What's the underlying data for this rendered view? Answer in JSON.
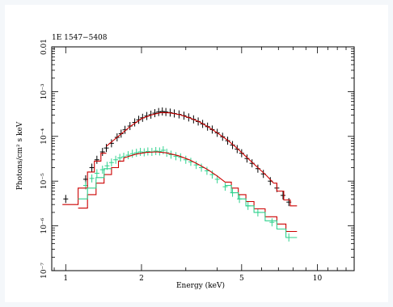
{
  "chart_data": {
    "type": "scatter",
    "title": "1E 1547−5408",
    "xlabel": "Energy (keV)",
    "ylabel": "Photons/cm² s keV",
    "xscale": "log",
    "yscale": "log",
    "xlim": [
      0.88,
      14
    ],
    "ylim": [
      1e-07,
      0.01
    ],
    "grid": false,
    "colors": {
      "obs1_data": "#000000",
      "obs1_model": "#cc0000",
      "obs2_data": "#2fd28e",
      "obs2_model": "#cc0000"
    },
    "xticks": [
      {
        "value": 1,
        "label": "1"
      },
      {
        "value": 2,
        "label": "2"
      },
      {
        "value": 5,
        "label": "5"
      },
      {
        "value": 10,
        "label": "10"
      }
    ],
    "yticks": [
      {
        "value": 0.01,
        "label": "0.01"
      },
      {
        "value": 0.001,
        "label": "10⁻³"
      },
      {
        "value": 0.0001,
        "label": "10⁻⁴"
      },
      {
        "value": 1e-05,
        "label": "10⁻⁵"
      },
      {
        "value": 1e-06,
        "label": "10⁻⁶"
      },
      {
        "value": 1e-07,
        "label": "10⁻⁷"
      }
    ],
    "series": [
      {
        "kind": "points",
        "color": "#000000",
        "points": [
          [
            1.0,
            4e-06
          ],
          [
            1.2,
            1.1e-05
          ],
          [
            1.27,
            2e-05
          ],
          [
            1.33,
            3e-05
          ],
          [
            1.4,
            4.5e-05
          ],
          [
            1.45,
            5.5e-05
          ],
          [
            1.52,
            7e-05
          ],
          [
            1.6,
            9.5e-05
          ],
          [
            1.66,
            0.000115
          ],
          [
            1.72,
            0.00014
          ],
          [
            1.8,
            0.00017
          ],
          [
            1.88,
            0.000205
          ],
          [
            1.95,
            0.000235
          ],
          [
            2.02,
            0.00026
          ],
          [
            2.1,
            0.000285
          ],
          [
            2.18,
            0.000305
          ],
          [
            2.26,
            0.00033
          ],
          [
            2.34,
            0.00035
          ],
          [
            2.42,
            0.00036
          ],
          [
            2.5,
            0.00035
          ],
          [
            2.6,
            0.00034
          ],
          [
            2.7,
            0.000325
          ],
          [
            2.82,
            0.00031
          ],
          [
            2.95,
            0.00029
          ],
          [
            3.08,
            0.000265
          ],
          [
            3.22,
            0.00024
          ],
          [
            3.36,
            0.000215
          ],
          [
            3.5,
            0.00019
          ],
          [
            3.66,
            0.000165
          ],
          [
            3.82,
            0.000142
          ],
          [
            4.0,
            0.00012
          ],
          [
            4.2,
            9.8e-05
          ],
          [
            4.4,
            8e-05
          ],
          [
            4.6,
            6.4e-05
          ],
          [
            4.8,
            5.2e-05
          ],
          [
            5.0,
            4.2e-05
          ],
          [
            5.25,
            3.2e-05
          ],
          [
            5.5,
            2.5e-05
          ],
          [
            5.8,
            1.9e-05
          ],
          [
            6.1,
            1.45e-05
          ],
          [
            6.5,
            1e-05
          ],
          [
            6.9,
            7e-06
          ],
          [
            7.3,
            4.8e-06
          ],
          [
            7.7,
            3.4e-06
          ]
        ]
      },
      {
        "kind": "points",
        "color": "#2fd28e",
        "points": [
          [
            1.2,
            8e-06
          ],
          [
            1.27,
            1.15e-05
          ],
          [
            1.33,
            1.5e-05
          ],
          [
            1.4,
            1.8e-05
          ],
          [
            1.46,
            2.2e-05
          ],
          [
            1.52,
            2.6e-05
          ],
          [
            1.58,
            3e-05
          ],
          [
            1.64,
            3.3e-05
          ],
          [
            1.7,
            3.5e-05
          ],
          [
            1.77,
            3.8e-05
          ],
          [
            1.84,
            4.1e-05
          ],
          [
            1.91,
            4.3e-05
          ],
          [
            1.98,
            4.5e-05
          ],
          [
            2.05,
            4.4e-05
          ],
          [
            2.12,
            4.6e-05
          ],
          [
            2.2,
            4.5e-05
          ],
          [
            2.28,
            4.7e-05
          ],
          [
            2.36,
            4.6e-05
          ],
          [
            2.44,
            4.9e-05
          ],
          [
            2.52,
            4.3e-05
          ],
          [
            2.62,
            3.9e-05
          ],
          [
            2.74,
            3.6e-05
          ],
          [
            2.86,
            3.4e-05
          ],
          [
            3.0,
            3e-05
          ],
          [
            3.14,
            2.7e-05
          ],
          [
            3.3,
            2.3e-05
          ],
          [
            3.46,
            2e-05
          ],
          [
            3.64,
            1.7e-05
          ],
          [
            3.82,
            1.4e-05
          ],
          [
            4.0,
            1.1e-05
          ],
          [
            4.3,
            7.5e-06
          ],
          [
            4.6,
            5.5e-06
          ],
          [
            4.9,
            4e-06
          ],
          [
            5.3,
            2.8e-06
          ],
          [
            5.8,
            2e-06
          ],
          [
            6.6,
            1.2e-06
          ],
          [
            7.7,
            5.5e-07
          ]
        ]
      },
      {
        "kind": "curve",
        "color": "#cc0000",
        "points": [
          [
            1.45,
            6e-05
          ],
          [
            1.6,
            9.5e-05
          ],
          [
            1.8,
            0.000165
          ],
          [
            2.0,
            0.00025
          ],
          [
            2.2,
            0.000305
          ],
          [
            2.4,
            0.00034
          ],
          [
            2.6,
            0.000335
          ],
          [
            2.85,
            0.000305
          ],
          [
            3.1,
            0.00026
          ],
          [
            3.4,
            0.00021
          ],
          [
            3.7,
            0.00016
          ],
          [
            4.0,
            0.00012
          ],
          [
            4.4,
            8.2e-05
          ],
          [
            4.8,
            5.4e-05
          ],
          [
            5.3,
            3.2e-05
          ],
          [
            5.8,
            2e-05
          ],
          [
            6.3,
            1.3e-05
          ],
          [
            6.7,
            9e-06
          ]
        ]
      },
      {
        "kind": "curve",
        "color": "#cc0000",
        "points": [
          [
            1.7,
            3.3e-05
          ],
          [
            1.9,
            4e-05
          ],
          [
            2.1,
            4.4e-05
          ],
          [
            2.3,
            4.5e-05
          ],
          [
            2.5,
            4.3e-05
          ],
          [
            2.8,
            3.7e-05
          ],
          [
            3.1,
            3e-05
          ],
          [
            3.4,
            2.3e-05
          ],
          [
            3.7,
            1.75e-05
          ],
          [
            4.0,
            1.3e-05
          ],
          [
            4.3,
            9.5e-06
          ]
        ]
      },
      {
        "kind": "step",
        "color": "#cc0000",
        "points": [
          [
            0.97,
            3e-06
          ],
          [
            1.12,
            3e-06
          ],
          [
            1.12,
            7e-06
          ],
          [
            1.22,
            7e-06
          ],
          [
            1.22,
            1.6e-05
          ],
          [
            1.3,
            1.6e-05
          ],
          [
            1.3,
            2.8e-05
          ],
          [
            1.38,
            2.8e-05
          ],
          [
            1.38,
            4.2e-05
          ],
          [
            1.45,
            4.2e-05
          ]
        ]
      },
      {
        "kind": "step",
        "color": "#cc0000",
        "points": [
          [
            6.7,
            9e-06
          ],
          [
            6.9,
            9e-06
          ],
          [
            6.9,
            6e-06
          ],
          [
            7.35,
            6e-06
          ],
          [
            7.35,
            3.8e-06
          ],
          [
            7.8,
            3.8e-06
          ],
          [
            7.8,
            2.8e-06
          ],
          [
            8.3,
            2.8e-06
          ]
        ]
      },
      {
        "kind": "step",
        "color": "#cc0000",
        "points": [
          [
            1.12,
            2.5e-06
          ],
          [
            1.22,
            2.5e-06
          ],
          [
            1.22,
            5e-06
          ],
          [
            1.32,
            5e-06
          ],
          [
            1.32,
            9e-06
          ],
          [
            1.42,
            9e-06
          ],
          [
            1.42,
            1.4e-05
          ],
          [
            1.52,
            1.4e-05
          ],
          [
            1.52,
            2e-05
          ],
          [
            1.62,
            2e-05
          ],
          [
            1.62,
            2.8e-05
          ],
          [
            1.7,
            2.8e-05
          ],
          [
            1.7,
            3.3e-05
          ]
        ]
      },
      {
        "kind": "step",
        "color": "#cc0000",
        "points": [
          [
            4.3,
            9.5e-06
          ],
          [
            4.55,
            9.5e-06
          ],
          [
            4.55,
            7e-06
          ],
          [
            4.85,
            7e-06
          ],
          [
            4.85,
            5e-06
          ],
          [
            5.2,
            5e-06
          ],
          [
            5.2,
            3.5e-06
          ],
          [
            5.6,
            3.5e-06
          ],
          [
            5.6,
            2.4e-06
          ],
          [
            6.2,
            2.4e-06
          ],
          [
            6.2,
            1.6e-06
          ],
          [
            6.9,
            1.6e-06
          ],
          [
            6.9,
            1.1e-06
          ],
          [
            7.5,
            1.1e-06
          ],
          [
            7.5,
            7.5e-07
          ],
          [
            8.3,
            7.5e-07
          ]
        ]
      },
      {
        "kind": "step",
        "color": "#2fd28e",
        "points": [
          [
            1.12,
            4e-06
          ],
          [
            1.22,
            4e-06
          ],
          [
            1.22,
            7e-06
          ],
          [
            1.32,
            7e-06
          ],
          [
            1.32,
            1.2e-05
          ],
          [
            1.42,
            1.2e-05
          ],
          [
            1.42,
            1.9e-05
          ],
          [
            1.52,
            1.9e-05
          ]
        ]
      },
      {
        "kind": "step",
        "color": "#2fd28e",
        "points": [
          [
            4.3,
            8e-06
          ],
          [
            4.55,
            8e-06
          ],
          [
            4.55,
            5.5e-06
          ],
          [
            4.85,
            5.5e-06
          ],
          [
            4.85,
            4e-06
          ],
          [
            5.2,
            4e-06
          ],
          [
            5.2,
            2.8e-06
          ],
          [
            5.6,
            2.8e-06
          ],
          [
            5.6,
            2e-06
          ],
          [
            6.2,
            2e-06
          ],
          [
            6.2,
            1.3e-06
          ],
          [
            6.9,
            1.3e-06
          ],
          [
            6.9,
            8.5e-07
          ],
          [
            7.5,
            8.5e-07
          ],
          [
            7.5,
            5.5e-07
          ],
          [
            8.3,
            5.5e-07
          ]
        ]
      }
    ]
  }
}
